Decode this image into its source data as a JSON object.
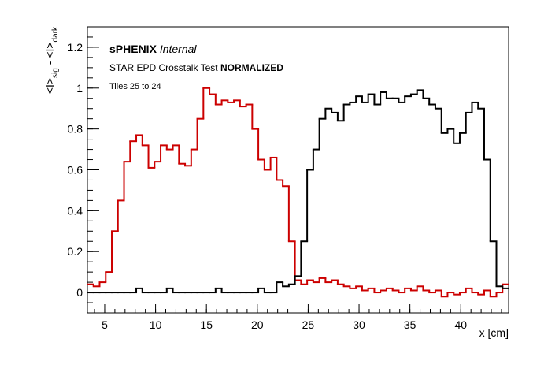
{
  "chart_data": {
    "type": "histogram",
    "annotations": {
      "experiment": "sPHENIX",
      "status": "Internal",
      "test": "STAR EPD Crosstalk Test",
      "mode": "NORMALIZED",
      "tiles": "Tiles 25 to 24"
    },
    "xlabel": "x [cm]",
    "ylabel_parts": [
      "<I>",
      "sig",
      " - <I>",
      "dark"
    ],
    "xlim": [
      3.3,
      44.7
    ],
    "ylim": [
      -0.1,
      1.3
    ],
    "xticks": [
      5,
      10,
      15,
      20,
      25,
      30,
      35,
      40
    ],
    "yticks": [
      0,
      0.2,
      0.4,
      0.6,
      0.8,
      1,
      1.2
    ],
    "bins": [
      3.3,
      3.9,
      4.5,
      5.1,
      5.7,
      6.3,
      6.9,
      7.5,
      8.1,
      8.7,
      9.3,
      9.9,
      10.5,
      11.1,
      11.7,
      12.3,
      12.9,
      13.5,
      14.1,
      14.7,
      15.3,
      15.9,
      16.5,
      17.1,
      17.7,
      18.3,
      18.9,
      19.5,
      20.1,
      20.7,
      21.3,
      21.9,
      22.5,
      23.1,
      23.7,
      24.3,
      24.9,
      25.5,
      26.1,
      26.7,
      27.3,
      27.9,
      28.5,
      29.1,
      29.7,
      30.3,
      30.9,
      31.5,
      32.1,
      32.7,
      33.3,
      33.9,
      34.5,
      35.1,
      35.7,
      36.3,
      36.9,
      37.5,
      38.1,
      38.7,
      39.3,
      39.9,
      40.5,
      41.1,
      41.7,
      42.3,
      42.9,
      43.5,
      44.1,
      44.7
    ],
    "series": [
      {
        "color": "#cc0000",
        "values": [
          0.04,
          0.03,
          0.05,
          0.1,
          0.3,
          0.45,
          0.64,
          0.74,
          0.77,
          0.72,
          0.61,
          0.64,
          0.72,
          0.7,
          0.72,
          0.63,
          0.62,
          0.7,
          0.85,
          1.0,
          0.97,
          0.92,
          0.94,
          0.93,
          0.94,
          0.91,
          0.92,
          0.8,
          0.65,
          0.6,
          0.66,
          0.55,
          0.52,
          0.25,
          0.06,
          0.04,
          0.06,
          0.05,
          0.07,
          0.05,
          0.06,
          0.04,
          0.03,
          0.02,
          0.03,
          0.01,
          0.02,
          0,
          0.01,
          0.02,
          0.01,
          0,
          0.02,
          0.01,
          0.03,
          0.01,
          0,
          0.01,
          -0.02,
          0,
          -0.01,
          0,
          0.02,
          0,
          -0.01,
          0.01,
          -0.02,
          0,
          0.04
        ]
      },
      {
        "color": "#000000",
        "values": [
          0,
          0,
          0,
          0,
          0,
          0,
          0,
          0,
          0.02,
          0,
          0,
          0,
          0,
          0.02,
          0,
          0,
          0,
          0,
          0,
          0,
          0,
          0.02,
          0,
          0,
          0,
          0,
          0,
          0,
          0.02,
          0,
          0,
          0.05,
          0.03,
          0.04,
          0.08,
          0.25,
          0.6,
          0.7,
          0.85,
          0.9,
          0.88,
          0.84,
          0.92,
          0.93,
          0.96,
          0.93,
          0.97,
          0.92,
          0.98,
          0.95,
          0.95,
          0.93,
          0.96,
          0.97,
          0.99,
          0.95,
          0.92,
          0.9,
          0.78,
          0.8,
          0.73,
          0.78,
          0.88,
          0.93,
          0.9,
          0.65,
          0.25,
          0.03,
          0.02
        ]
      }
    ]
  }
}
